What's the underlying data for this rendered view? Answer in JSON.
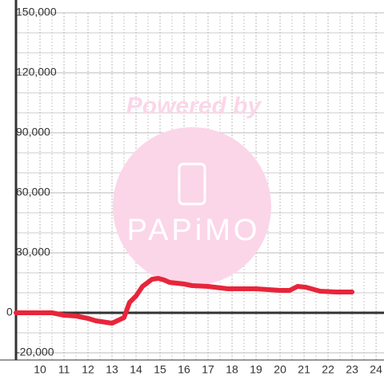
{
  "chart_data": {
    "type": "line",
    "x": [
      9,
      9.5,
      10,
      10.5,
      11,
      11.5,
      12,
      12.33,
      13,
      13.5,
      13.73,
      14,
      14.27,
      14.67,
      14.93,
      15.17,
      15.4,
      16,
      16.33,
      17,
      17.83,
      19,
      20,
      20.4,
      20.73,
      21.07,
      21.67,
      22.33,
      23
    ],
    "series": [
      {
        "color": "#e8253a",
        "values": [
          0,
          0,
          0,
          0,
          -1200,
          -1600,
          -2800,
          -4000,
          -5200,
          -2400,
          5200,
          8400,
          13200,
          16800,
          17200,
          16400,
          15200,
          14400,
          13600,
          13200,
          12000,
          12000,
          11200,
          11200,
          13200,
          12800,
          10800,
          10400,
          10400
        ]
      }
    ],
    "xlim": [
      9,
      24.33
    ],
    "xticks": [
      10,
      11,
      12,
      13,
      14,
      15,
      16,
      17,
      18,
      19,
      20,
      21,
      22,
      23,
      24
    ],
    "xminorticks": [
      9.5,
      10.5,
      11.5,
      12.5,
      13.5,
      14.5,
      15.5,
      16.5,
      17.5,
      18.5,
      19.5,
      20.5,
      21.5,
      22.5,
      23.5
    ],
    "ylim": [
      -20000,
      150000
    ],
    "yticks": [
      {
        "value": -20000,
        "label": "-20,000"
      },
      0,
      {
        "value": 30000,
        "label": "30,000"
      },
      {
        "value": 60000,
        "label": "60,000"
      },
      {
        "value": 90000,
        "label": "90,000"
      },
      {
        "value": 120000,
        "label": "120,000"
      },
      {
        "value": 150000,
        "label": "150,000"
      }
    ],
    "yminorticks": [
      -10000,
      10000,
      20000,
      40000,
      50000,
      70000,
      80000,
      100000,
      110000,
      130000,
      140000
    ],
    "grid": true
  },
  "watermark": {
    "title": "Powered by",
    "brand": "PAPiMO"
  }
}
